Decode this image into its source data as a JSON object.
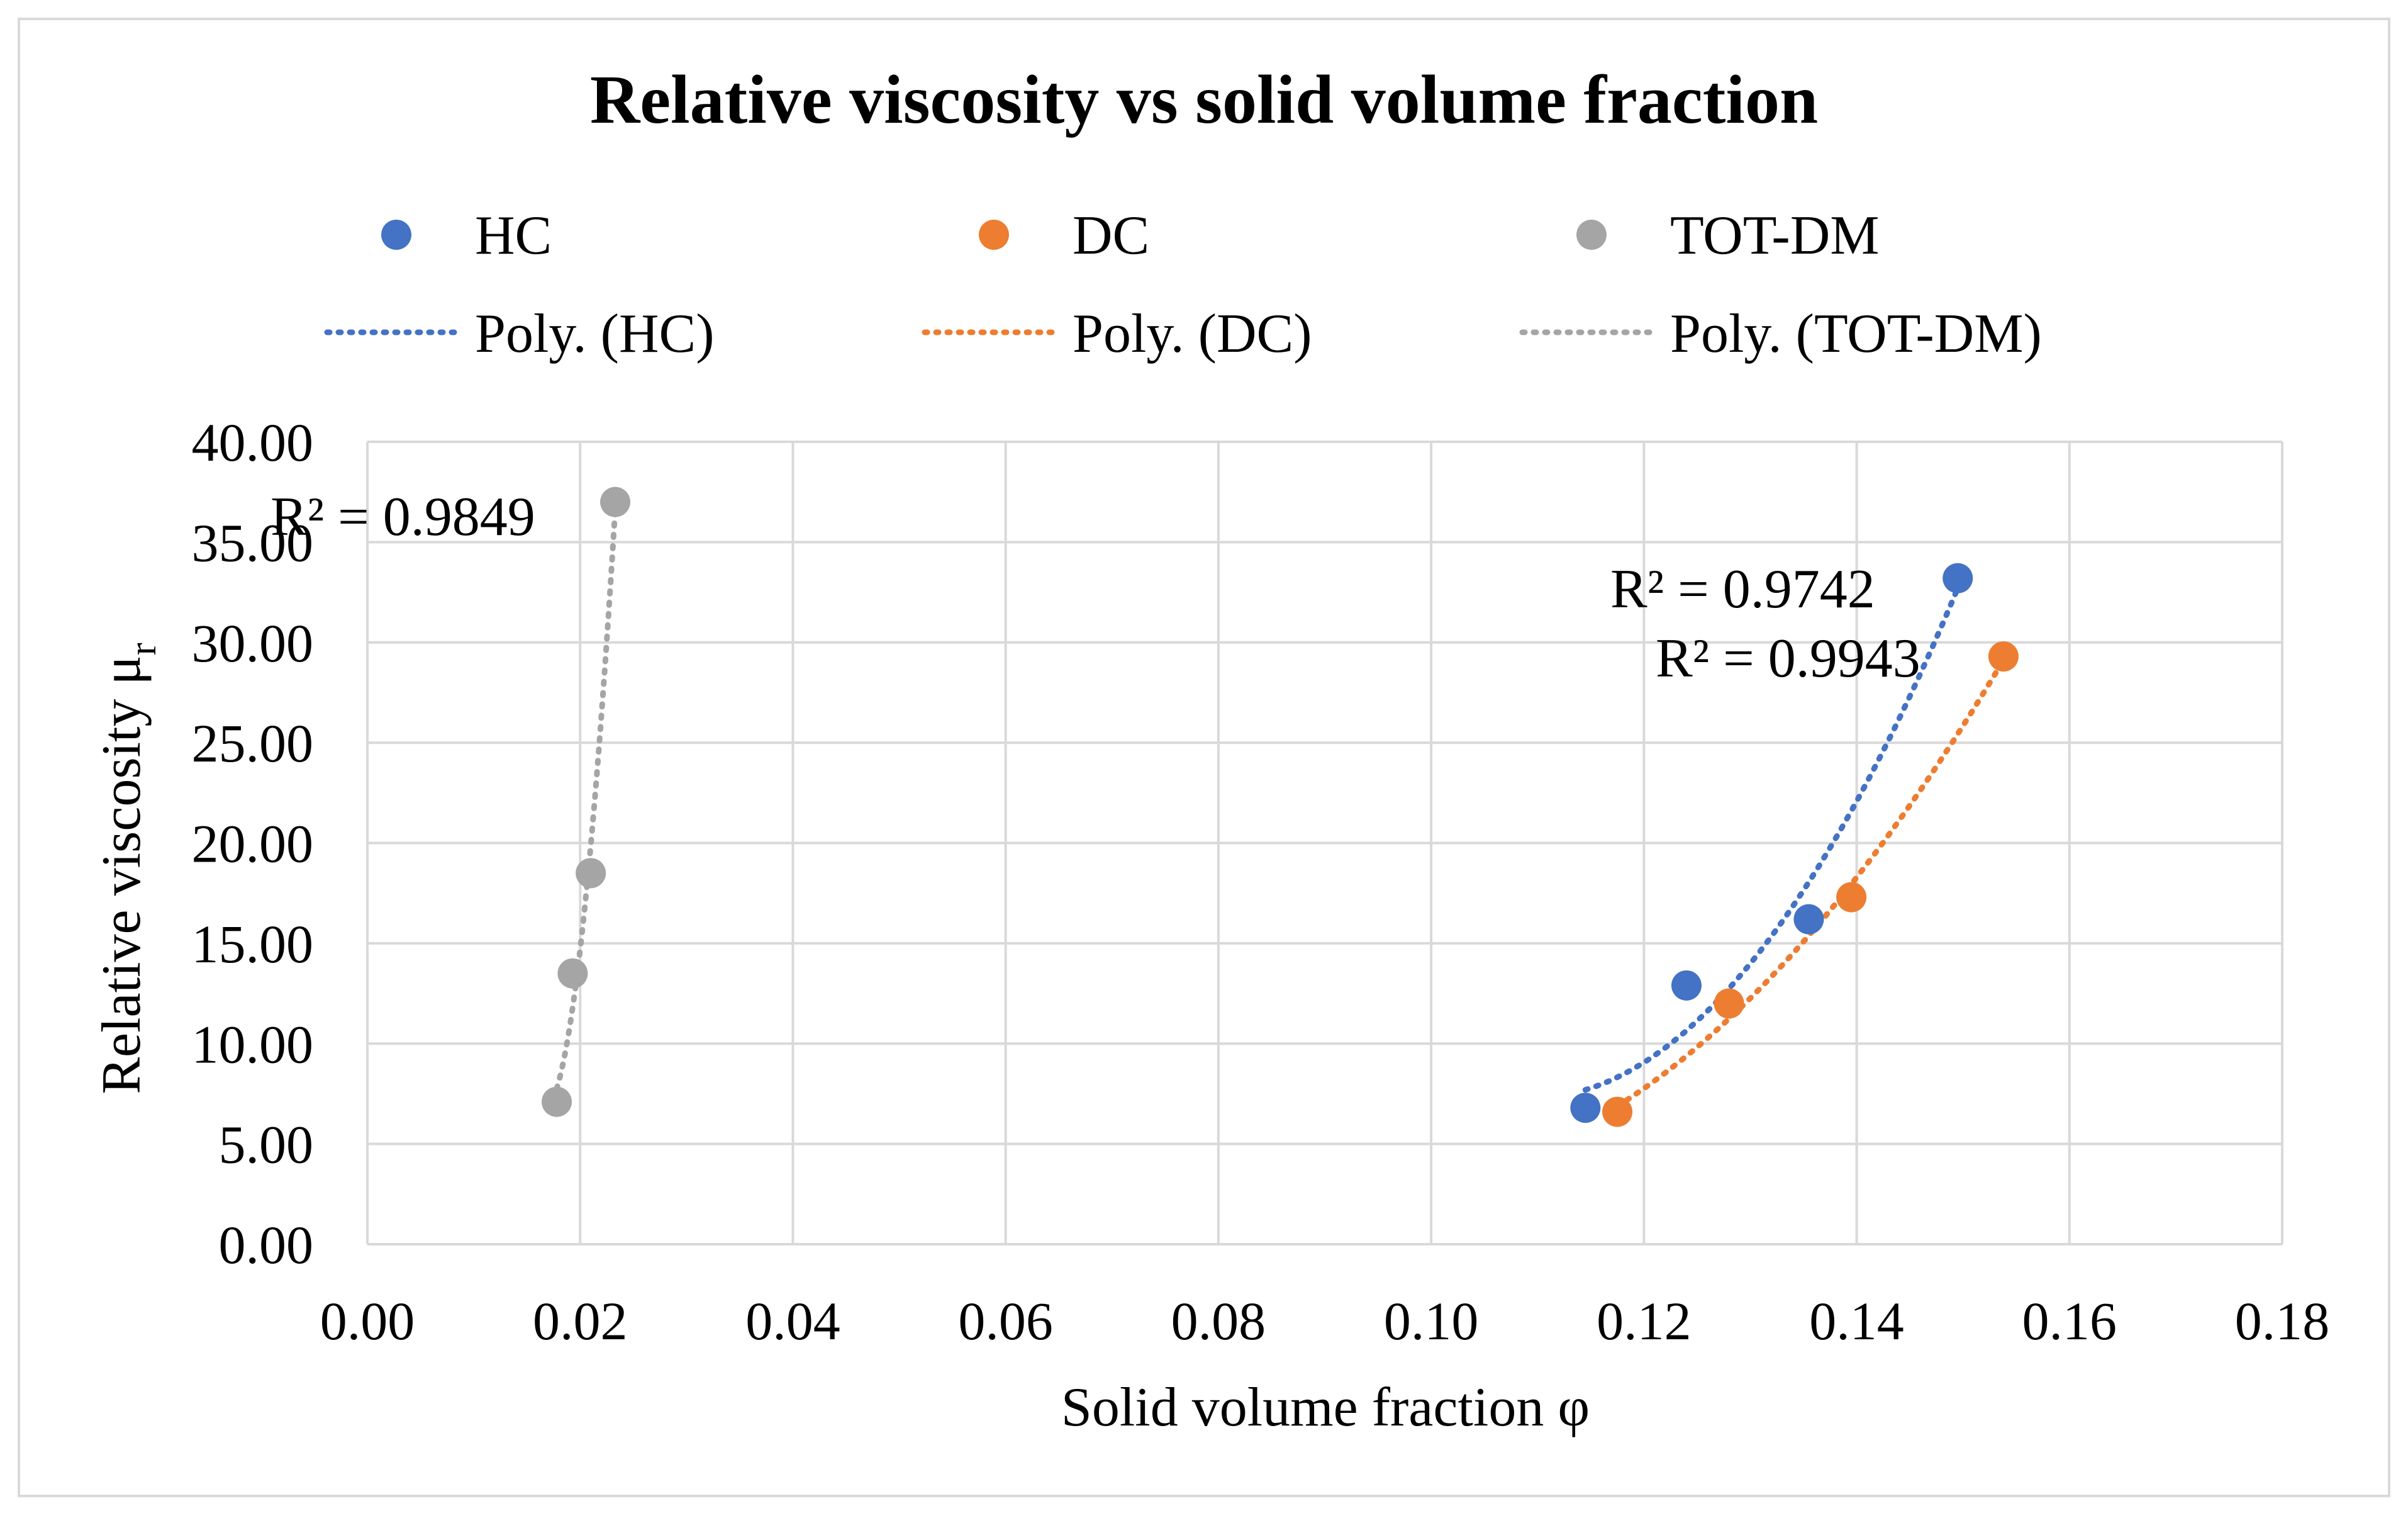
{
  "chart_data": {
    "type": "scatter",
    "title": "Relative viscosity vs solid volume fraction",
    "xlabel": "Solid volume fraction φ",
    "ylabel": {
      "main": "Relative viscosity μ",
      "sub": "r"
    },
    "xlim": [
      0,
      0.18
    ],
    "ylim": [
      0,
      40
    ],
    "x_ticks": [
      "0.00",
      "0.02",
      "0.04",
      "0.06",
      "0.08",
      "0.10",
      "0.12",
      "0.14",
      "0.16",
      "0.18"
    ],
    "y_ticks": [
      "0.00",
      "5.00",
      "10.00",
      "15.00",
      "20.00",
      "25.00",
      "30.00",
      "35.00",
      "40.00"
    ],
    "grid": true,
    "legend_position": "top",
    "series": [
      {
        "name": "HC",
        "color": "#4472c4",
        "points": [
          [
            0.1145,
            6.8
          ],
          [
            0.124,
            12.9
          ],
          [
            0.1355,
            16.2
          ],
          [
            0.1495,
            33.2
          ]
        ]
      },
      {
        "name": "DC",
        "color": "#ed7d31",
        "points": [
          [
            0.1175,
            6.6
          ],
          [
            0.128,
            12.0
          ],
          [
            0.1395,
            17.3
          ],
          [
            0.1538,
            29.3
          ]
        ]
      },
      {
        "name": "TOT-DM",
        "color": "#a5a5a5",
        "points": [
          [
            0.0178,
            7.1
          ],
          [
            0.0193,
            13.5
          ],
          [
            0.021,
            18.5
          ],
          [
            0.0233,
            37.0
          ]
        ]
      }
    ],
    "trendlines": [
      {
        "name": "Poly. (HC)",
        "series": "HC",
        "color": "#4472c4",
        "r2_label": "R² = 0.9742"
      },
      {
        "name": "Poly. (DC)",
        "series": "DC",
        "color": "#ed7d31",
        "r2_label": "R² = 0.9943"
      },
      {
        "name": "Poly. (TOT-DM)",
        "series": "TOT-DM",
        "color": "#a5a5a5",
        "r2_label": "R² = 0.9849"
      }
    ]
  }
}
